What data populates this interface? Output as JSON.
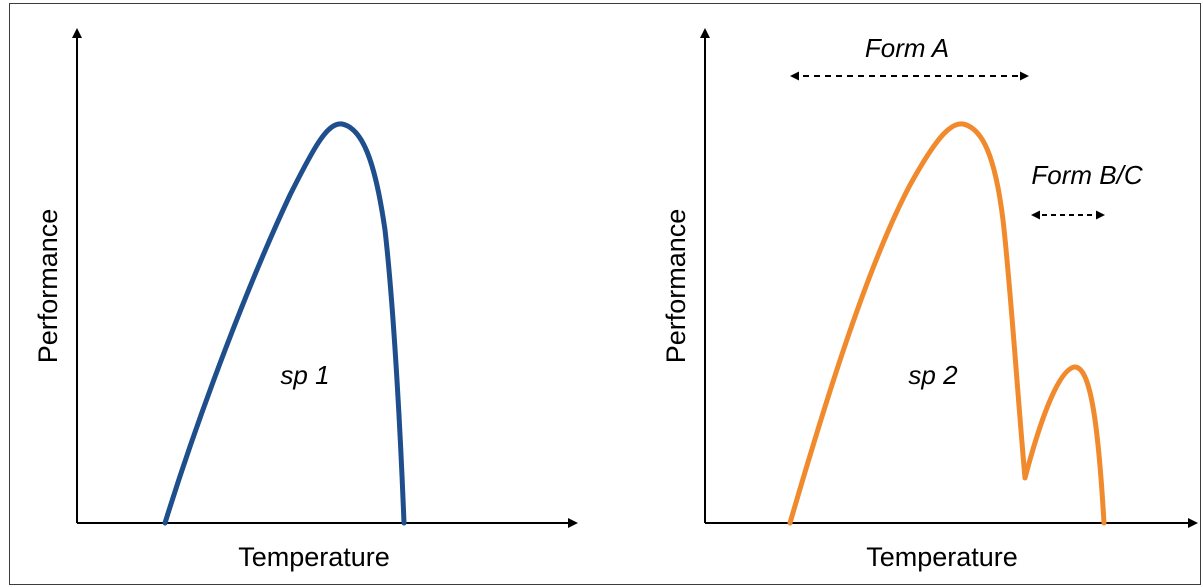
{
  "panels": [
    {
      "xlabel": "Temperature",
      "ylabel": "Performance",
      "curve_label": "sp 1",
      "curve_color": "#1f4e8c"
    },
    {
      "xlabel": "Temperature",
      "ylabel": "Performance",
      "curve_label": "sp 2",
      "curve_color": "#f08a2c",
      "range_labels": [
        "Form A",
        "Form B/C"
      ]
    }
  ]
}
